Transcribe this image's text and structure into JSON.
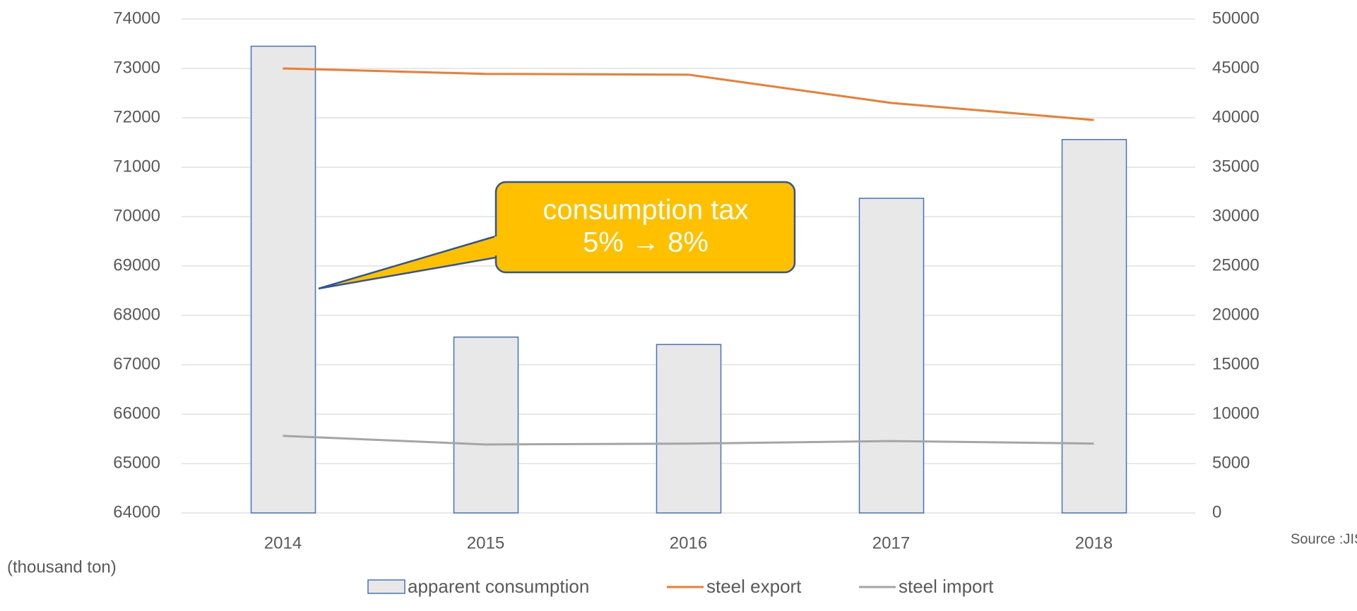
{
  "chart_data": {
    "type": "bar",
    "categories": [
      "2014",
      "2015",
      "2016",
      "2017",
      "2018"
    ],
    "series": [
      {
        "name": "apparent consumption",
        "type": "bar",
        "color": "#e8e8e8",
        "edge_color": "#4472c4",
        "axis": "y",
        "values": [
          73450,
          67560,
          67410,
          70370,
          71560
        ]
      },
      {
        "name": "steel export",
        "type": "line",
        "color": "#ed7d31",
        "axis": "y2",
        "values": [
          45000,
          44450,
          44370,
          41510,
          39780
        ]
      },
      {
        "name": "steel import",
        "type": "line",
        "color": "#a5a5a5",
        "axis": "y2",
        "values": [
          7800,
          6930,
          7020,
          7280,
          7020
        ]
      }
    ],
    "ylim": [
      64000,
      74000
    ],
    "yticks": [
      64000,
      65000,
      66000,
      67000,
      68000,
      69000,
      70000,
      71000,
      72000,
      73000,
      74000
    ],
    "y2lim": [
      0,
      50000
    ],
    "y2ticks": [
      0,
      5000,
      10000,
      15000,
      20000,
      25000,
      30000,
      35000,
      40000,
      45000,
      50000
    ],
    "ylabel": "(thousand ton)",
    "source": "Source :JISF",
    "annotation": [
      "consumption tax",
      "5% → 8%"
    ],
    "grid": true,
    "legend": "bottom"
  }
}
